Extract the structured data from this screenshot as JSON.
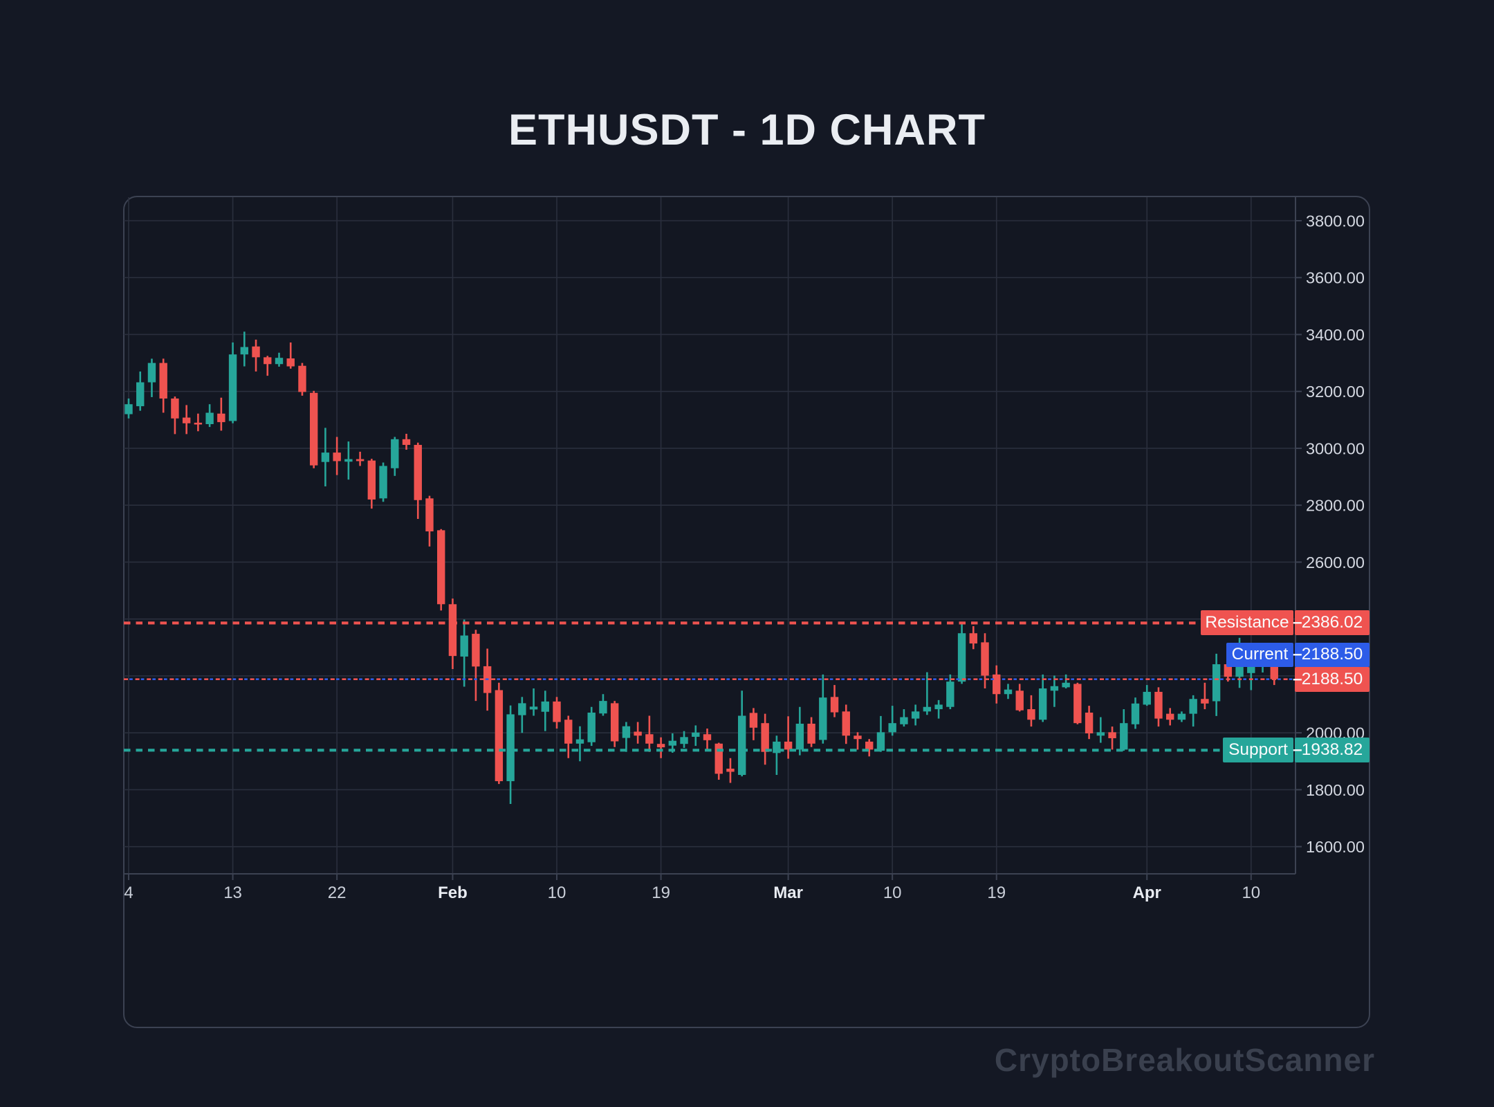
{
  "title": "ETHUSDT - 1D CHART",
  "watermark": "CryptoBreakoutScanner",
  "ui": {
    "axis_dash": "–"
  },
  "colors": {
    "up": "#26A69A",
    "down": "#EF5350",
    "resistance": "#EF5350",
    "support": "#26A69A",
    "current": "#2D5CE8",
    "last_price": "#EF5350",
    "grid": "#2A2F3D",
    "axis": "#3C4252",
    "price_text": "#D4D8E1",
    "date_text": "#CBD0DA",
    "month_text": "#E9ECF2",
    "title_text": "#EAEDF2",
    "watermark_text": "#3A404E",
    "bg": "#141824",
    "plot_bg": "#131722",
    "badge_text": "#FAFBFC"
  },
  "chart_data": {
    "type": "candlestick",
    "symbol": "ETHUSDT",
    "timeframe": "1D",
    "title": "ETHUSDT - 1D CHART",
    "grid": true,
    "legend": false,
    "y_axis": {
      "side": "right",
      "tick_values": [
        3800,
        3600,
        3400,
        3200,
        3000,
        2800,
        2600,
        2400,
        2200,
        2000,
        1800,
        1600
      ],
      "tick_labels": [
        "3800.00",
        "3600.00",
        "3400.00",
        "3200.00",
        "3000.00",
        "2800.00",
        "2600.00",
        "2400.00",
        "2200.00",
        "2000.00",
        "1800.00",
        "1600.00"
      ],
      "visible_range": [
        1490,
        3890
      ]
    },
    "x_axis": {
      "tick_indices": [
        0,
        9,
        18,
        28,
        37,
        46,
        57,
        66,
        75,
        88,
        97
      ],
      "tick_labels": [
        "4",
        "13",
        "22",
        "Feb",
        "10",
        "19",
        "Mar",
        "10",
        "19",
        "Apr",
        "10"
      ],
      "tick_bold": [
        false,
        false,
        false,
        true,
        false,
        false,
        true,
        false,
        false,
        true,
        false
      ]
    },
    "levels": {
      "resistance": {
        "label": "Resistance",
        "value": "2386.02",
        "price": 2386.02
      },
      "current": {
        "label": "Current",
        "value": "2188.50",
        "price": 2188.5
      },
      "last_price": {
        "value": "2188.50",
        "price": 2188.5
      },
      "support": {
        "label": "Support",
        "value": "1938.82",
        "price": 1938.82
      }
    },
    "candles_columns": [
      "date",
      "open",
      "high",
      "low",
      "close"
    ],
    "candles": [
      [
        "Jan 4",
        3120,
        3175,
        3105,
        3155
      ],
      [
        "Jan 5",
        3148,
        3270,
        3132,
        3232
      ],
      [
        "Jan 6",
        3232,
        3315,
        3180,
        3300
      ],
      [
        "Jan 7",
        3300,
        3315,
        3125,
        3175
      ],
      [
        "Jan 8",
        3175,
        3182,
        3050,
        3105
      ],
      [
        "Jan 9",
        3108,
        3152,
        3050,
        3088
      ],
      [
        "Jan 10",
        3090,
        3122,
        3060,
        3085
      ],
      [
        "Jan 11",
        3085,
        3155,
        3075,
        3125
      ],
      [
        "Jan 12",
        3122,
        3178,
        3062,
        3092
      ],
      [
        "Jan 13",
        3096,
        3372,
        3088,
        3330
      ],
      [
        "Jan 14",
        3330,
        3410,
        3288,
        3356
      ],
      [
        "Jan 15",
        3358,
        3382,
        3270,
        3320
      ],
      [
        "Jan 16",
        3320,
        3325,
        3255,
        3296
      ],
      [
        "Jan 17",
        3296,
        3336,
        3287,
        3318
      ],
      [
        "Jan 18",
        3316,
        3372,
        3280,
        3288
      ],
      [
        "Jan 19",
        3290,
        3300,
        3185,
        3198
      ],
      [
        "Jan 20",
        3195,
        3202,
        2930,
        2940
      ],
      [
        "Jan 21",
        2952,
        3072,
        2866,
        2985
      ],
      [
        "Jan 22",
        2985,
        3040,
        2906,
        2955
      ],
      [
        "Jan 23",
        2953,
        3024,
        2890,
        2962
      ],
      [
        "Jan 24",
        2962,
        2988,
        2938,
        2955
      ],
      [
        "Jan 25",
        2957,
        2963,
        2788,
        2820
      ],
      [
        "Jan 26",
        2824,
        2950,
        2812,
        2938
      ],
      [
        "Jan 27",
        2930,
        3040,
        2903,
        3032
      ],
      [
        "Jan 28",
        3032,
        3051,
        2995,
        3012
      ],
      [
        "Jan 29",
        3012,
        3020,
        2752,
        2818
      ],
      [
        "Jan 30",
        2824,
        2833,
        2655,
        2708
      ],
      [
        "Jan 31",
        2712,
        2716,
        2430,
        2452
      ],
      [
        "Feb 1",
        2452,
        2472,
        2224,
        2270
      ],
      [
        "Feb 2",
        2268,
        2398,
        2162,
        2342
      ],
      [
        "Feb 3",
        2348,
        2362,
        2112,
        2233
      ],
      [
        "Feb 4",
        2234,
        2296,
        2078,
        2140
      ],
      [
        "Feb 5",
        2150,
        2176,
        1820,
        1830
      ],
      [
        "Feb 6",
        1830,
        2096,
        1750,
        2065
      ],
      [
        "Feb 7",
        2062,
        2126,
        2000,
        2104
      ],
      [
        "Feb 8",
        2082,
        2156,
        2060,
        2092
      ],
      [
        "Feb 9",
        2074,
        2148,
        2006,
        2110
      ],
      [
        "Feb 10",
        2110,
        2126,
        2015,
        2038
      ],
      [
        "Feb 11",
        2046,
        2060,
        1911,
        1962
      ],
      [
        "Feb 12",
        1962,
        2023,
        1900,
        1977
      ],
      [
        "Feb 13",
        1967,
        2091,
        1954,
        2071
      ],
      [
        "Feb 14",
        2068,
        2136,
        2060,
        2112
      ],
      [
        "Feb 15",
        2104,
        2112,
        1950,
        1970
      ],
      [
        "Feb 16",
        1982,
        2038,
        1933,
        2023
      ],
      [
        "Feb 17",
        2004,
        2038,
        1962,
        1990
      ],
      [
        "Feb 18",
        1995,
        2060,
        1933,
        1962
      ],
      [
        "Feb 19",
        1961,
        1984,
        1911,
        1949
      ],
      [
        "Feb 20",
        1955,
        1998,
        1930,
        1972
      ],
      [
        "Feb 21",
        1961,
        2006,
        1947,
        1985
      ],
      [
        "Feb 22",
        1986,
        2026,
        1954,
        2001
      ],
      [
        "Feb 23",
        1995,
        2015,
        1941,
        1974
      ],
      [
        "Feb 24",
        1962,
        1965,
        1835,
        1856
      ],
      [
        "Feb 25",
        1874,
        1911,
        1824,
        1863
      ],
      [
        "Feb 26",
        1852,
        2148,
        1847,
        2060
      ],
      [
        "Feb 27",
        2070,
        2087,
        1974,
        2018
      ],
      [
        "Feb 28",
        2034,
        2067,
        1888,
        1933
      ],
      [
        "Feb 29",
        1929,
        1990,
        1852,
        1969
      ],
      [
        "Mar 1",
        1969,
        2058,
        1909,
        1941
      ],
      [
        "Mar 2",
        1941,
        2091,
        1921,
        2032
      ],
      [
        "Mar 3",
        2032,
        2055,
        1950,
        1962
      ],
      [
        "Mar 4",
        1975,
        2205,
        1962,
        2124
      ],
      [
        "Mar 5",
        2126,
        2168,
        2055,
        2072
      ],
      [
        "Mar 6",
        2075,
        2099,
        1961,
        1990
      ],
      [
        "Mar 7",
        1990,
        2002,
        1941,
        1978
      ],
      [
        "Mar 8",
        1969,
        1978,
        1917,
        1941
      ],
      [
        "Mar 9",
        1937,
        2059,
        1933,
        2002
      ],
      [
        "Mar 10",
        2002,
        2095,
        1990,
        2034
      ],
      [
        "Mar 11",
        2030,
        2083,
        2022,
        2055
      ],
      [
        "Mar 12",
        2050,
        2099,
        2026,
        2075
      ],
      [
        "Mar 13",
        2075,
        2213,
        2063,
        2091
      ],
      [
        "Mar 14",
        2083,
        2115,
        2050,
        2099
      ],
      [
        "Mar 15",
        2091,
        2205,
        2083,
        2180
      ],
      [
        "Mar 16",
        2180,
        2389,
        2172,
        2350
      ],
      [
        "Mar 17",
        2350,
        2375,
        2294,
        2314
      ],
      [
        "Mar 18",
        2318,
        2350,
        2156,
        2201
      ],
      [
        "Mar 19",
        2205,
        2237,
        2103,
        2136
      ],
      [
        "Mar 20",
        2136,
        2172,
        2119,
        2152
      ],
      [
        "Mar 21",
        2148,
        2172,
        2075,
        2079
      ],
      [
        "Mar 22",
        2083,
        2132,
        2022,
        2046
      ],
      [
        "Mar 23",
        2046,
        2205,
        2038,
        2156
      ],
      [
        "Mar 24",
        2148,
        2201,
        2091,
        2164
      ],
      [
        "Mar 25",
        2160,
        2205,
        2156,
        2176
      ],
      [
        "Mar 26",
        2172,
        2176,
        2030,
        2034
      ],
      [
        "Mar 27",
        2071,
        2095,
        1978,
        1998
      ],
      [
        "Mar 28",
        1990,
        2055,
        1965,
        2002
      ],
      [
        "Mar 29",
        2002,
        2022,
        1941,
        1981
      ],
      [
        "Mar 30",
        1941,
        2083,
        1937,
        2034
      ],
      [
        "Mar 31",
        2030,
        2124,
        2014,
        2103
      ],
      [
        "Apr 1",
        2099,
        2168,
        2095,
        2144
      ],
      [
        "Apr 2",
        2144,
        2160,
        2022,
        2050
      ],
      [
        "Apr 3",
        2067,
        2087,
        2026,
        2046
      ],
      [
        "Apr 4",
        2046,
        2075,
        2038,
        2067
      ],
      [
        "Apr 5",
        2067,
        2132,
        2022,
        2119
      ],
      [
        "Apr 6",
        2119,
        2176,
        2083,
        2103
      ],
      [
        "Apr 7",
        2111,
        2278,
        2059,
        2241
      ],
      [
        "Apr 8",
        2241,
        2295,
        2180,
        2197
      ],
      [
        "Apr 9",
        2197,
        2334,
        2158,
        2252
      ],
      [
        "Apr 10",
        2210,
        2288,
        2150,
        2249
      ],
      [
        "Apr 11",
        2240,
        2312,
        2212,
        2290
      ],
      [
        "Apr 12",
        2290,
        2295,
        2168,
        2188.5
      ]
    ]
  }
}
